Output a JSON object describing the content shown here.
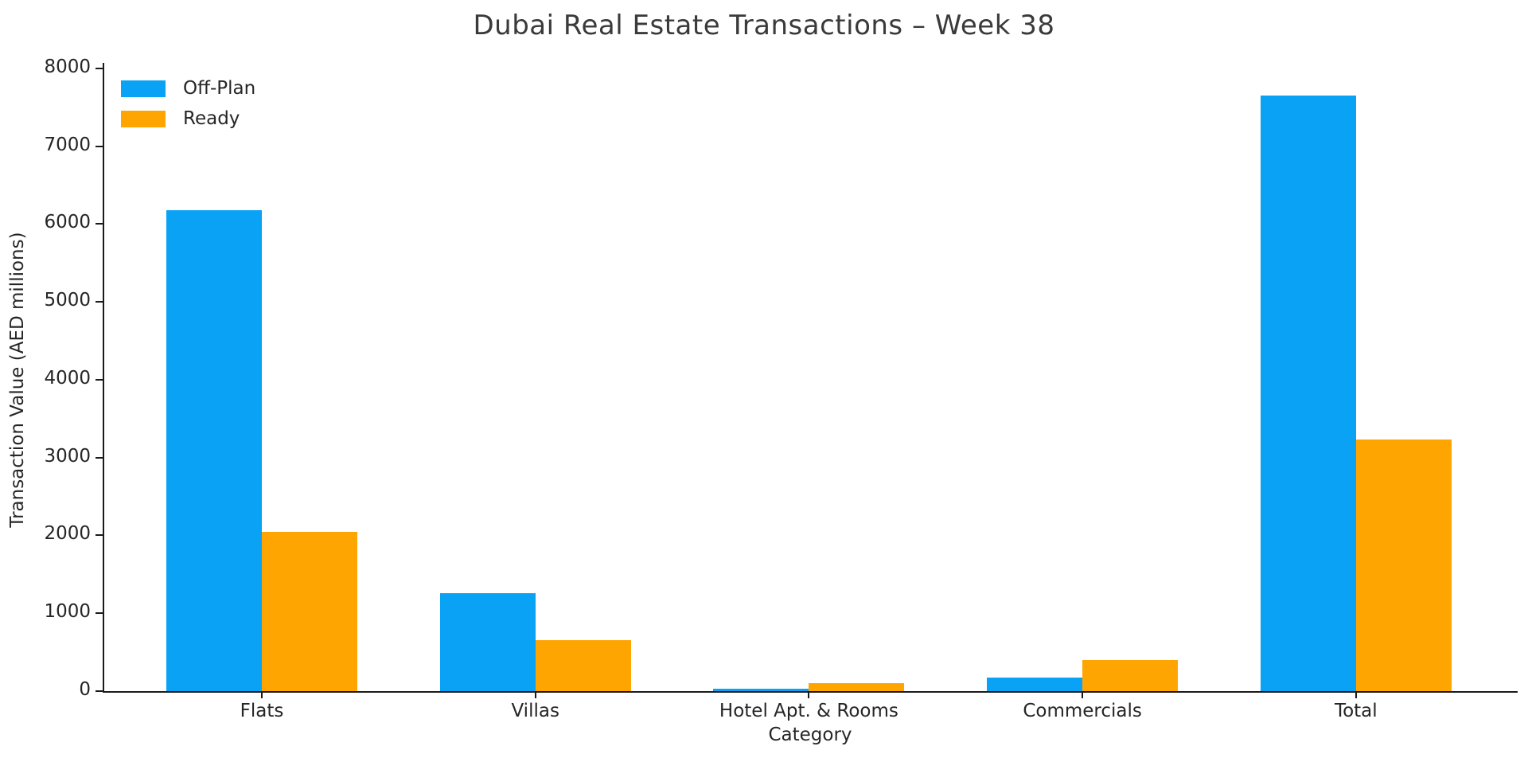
{
  "figure": {
    "title": "Dubai Real Estate Transactions – Week 38",
    "xlabel": "Category",
    "ylabel": "Transaction Value (AED millions)"
  },
  "legend": {
    "items": [
      {
        "label": "Off-Plan",
        "color": "#09A2F5"
      },
      {
        "label": "Ready",
        "color": "#FFA502"
      }
    ]
  },
  "chart_data": {
    "type": "bar",
    "title": "Dubai Real Estate Transactions – Week 38",
    "xlabel": "Category",
    "ylabel": "Transaction Value (AED millions)",
    "categories": [
      "Flats",
      "Villas",
      "Hotel Apt. & Rooms",
      "Commercials",
      "Total"
    ],
    "series": [
      {
        "name": "Off-Plan",
        "color": "#09A2F5",
        "values": [
          6180,
          1260,
          35,
          170,
          7650
        ]
      },
      {
        "name": "Ready",
        "color": "#FFA502",
        "values": [
          2050,
          650,
          100,
          400,
          3230
        ]
      }
    ],
    "ylim": [
      0,
      8000
    ],
    "yticks": [
      0,
      1000,
      2000,
      3000,
      4000,
      5000,
      6000,
      7000,
      8000
    ],
    "grid": false,
    "legend_position": "upper left",
    "background": "#FFFFFF"
  }
}
